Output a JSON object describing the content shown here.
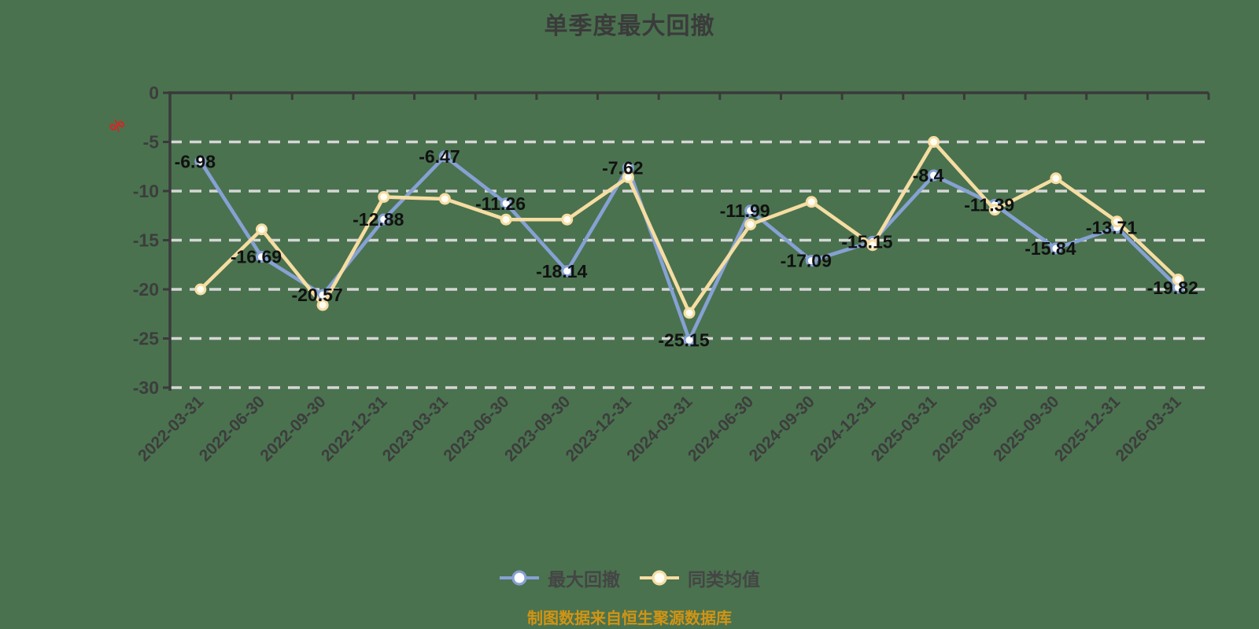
{
  "chart_data": {
    "type": "line",
    "title": "单季度最大回撤",
    "unit_label": "%",
    "source_note": "制图数据来自恒生聚源数据库",
    "legend_position": "bottom",
    "grid": "horizontal-dashed",
    "ylim": [
      -30,
      0
    ],
    "y_ticks": [
      0,
      -5,
      -10,
      -15,
      -20,
      -25,
      -30
    ],
    "categories": [
      "2022-03-31",
      "2022-06-30",
      "2022-09-30",
      "2022-12-31",
      "2023-03-31",
      "2023-06-30",
      "2023-09-30",
      "2023-12-31",
      "2024-03-31",
      "2024-06-30",
      "2024-09-30",
      "2024-12-31",
      "2025-03-31",
      "2025-06-30",
      "2025-09-30",
      "2025-12-31",
      "2026-03-31"
    ],
    "series": [
      {
        "key": "max-drawdown",
        "name": "最大回撤",
        "color": "#86a1d3",
        "marker_fill": "#ffffff",
        "show_labels": true,
        "values": [
          -6.98,
          -16.69,
          -20.57,
          -12.88,
          -6.47,
          -11.26,
          -18.14,
          -7.62,
          -25.15,
          -11.99,
          -17.09,
          -15.15,
          -8.4,
          -11.39,
          -15.84,
          -13.71,
          -19.82
        ]
      },
      {
        "key": "peer-average",
        "name": "同类均值",
        "color": "#f6dda2",
        "marker_fill": "#fffdf3",
        "show_labels": false,
        "values": [
          -20,
          -13.9,
          -21.6,
          -10.6,
          -10.8,
          -12.9,
          -12.9,
          -8.6,
          -22.4,
          -13.4,
          -11.1,
          -15.5,
          -5,
          -11.9,
          -8.7,
          -13.1,
          -19
        ]
      }
    ],
    "style": {
      "background": "#4a724f",
      "axis_color": "#3a3a3a",
      "axis_text_color": "#3d3d3d",
      "grid_color": "#d6d6d6",
      "data_label_color": "#111111",
      "unit_color": "#e02020",
      "title_color": "#3b3b3b",
      "legend_text_color": "#454545",
      "source_note_color": "#d29413"
    }
  }
}
